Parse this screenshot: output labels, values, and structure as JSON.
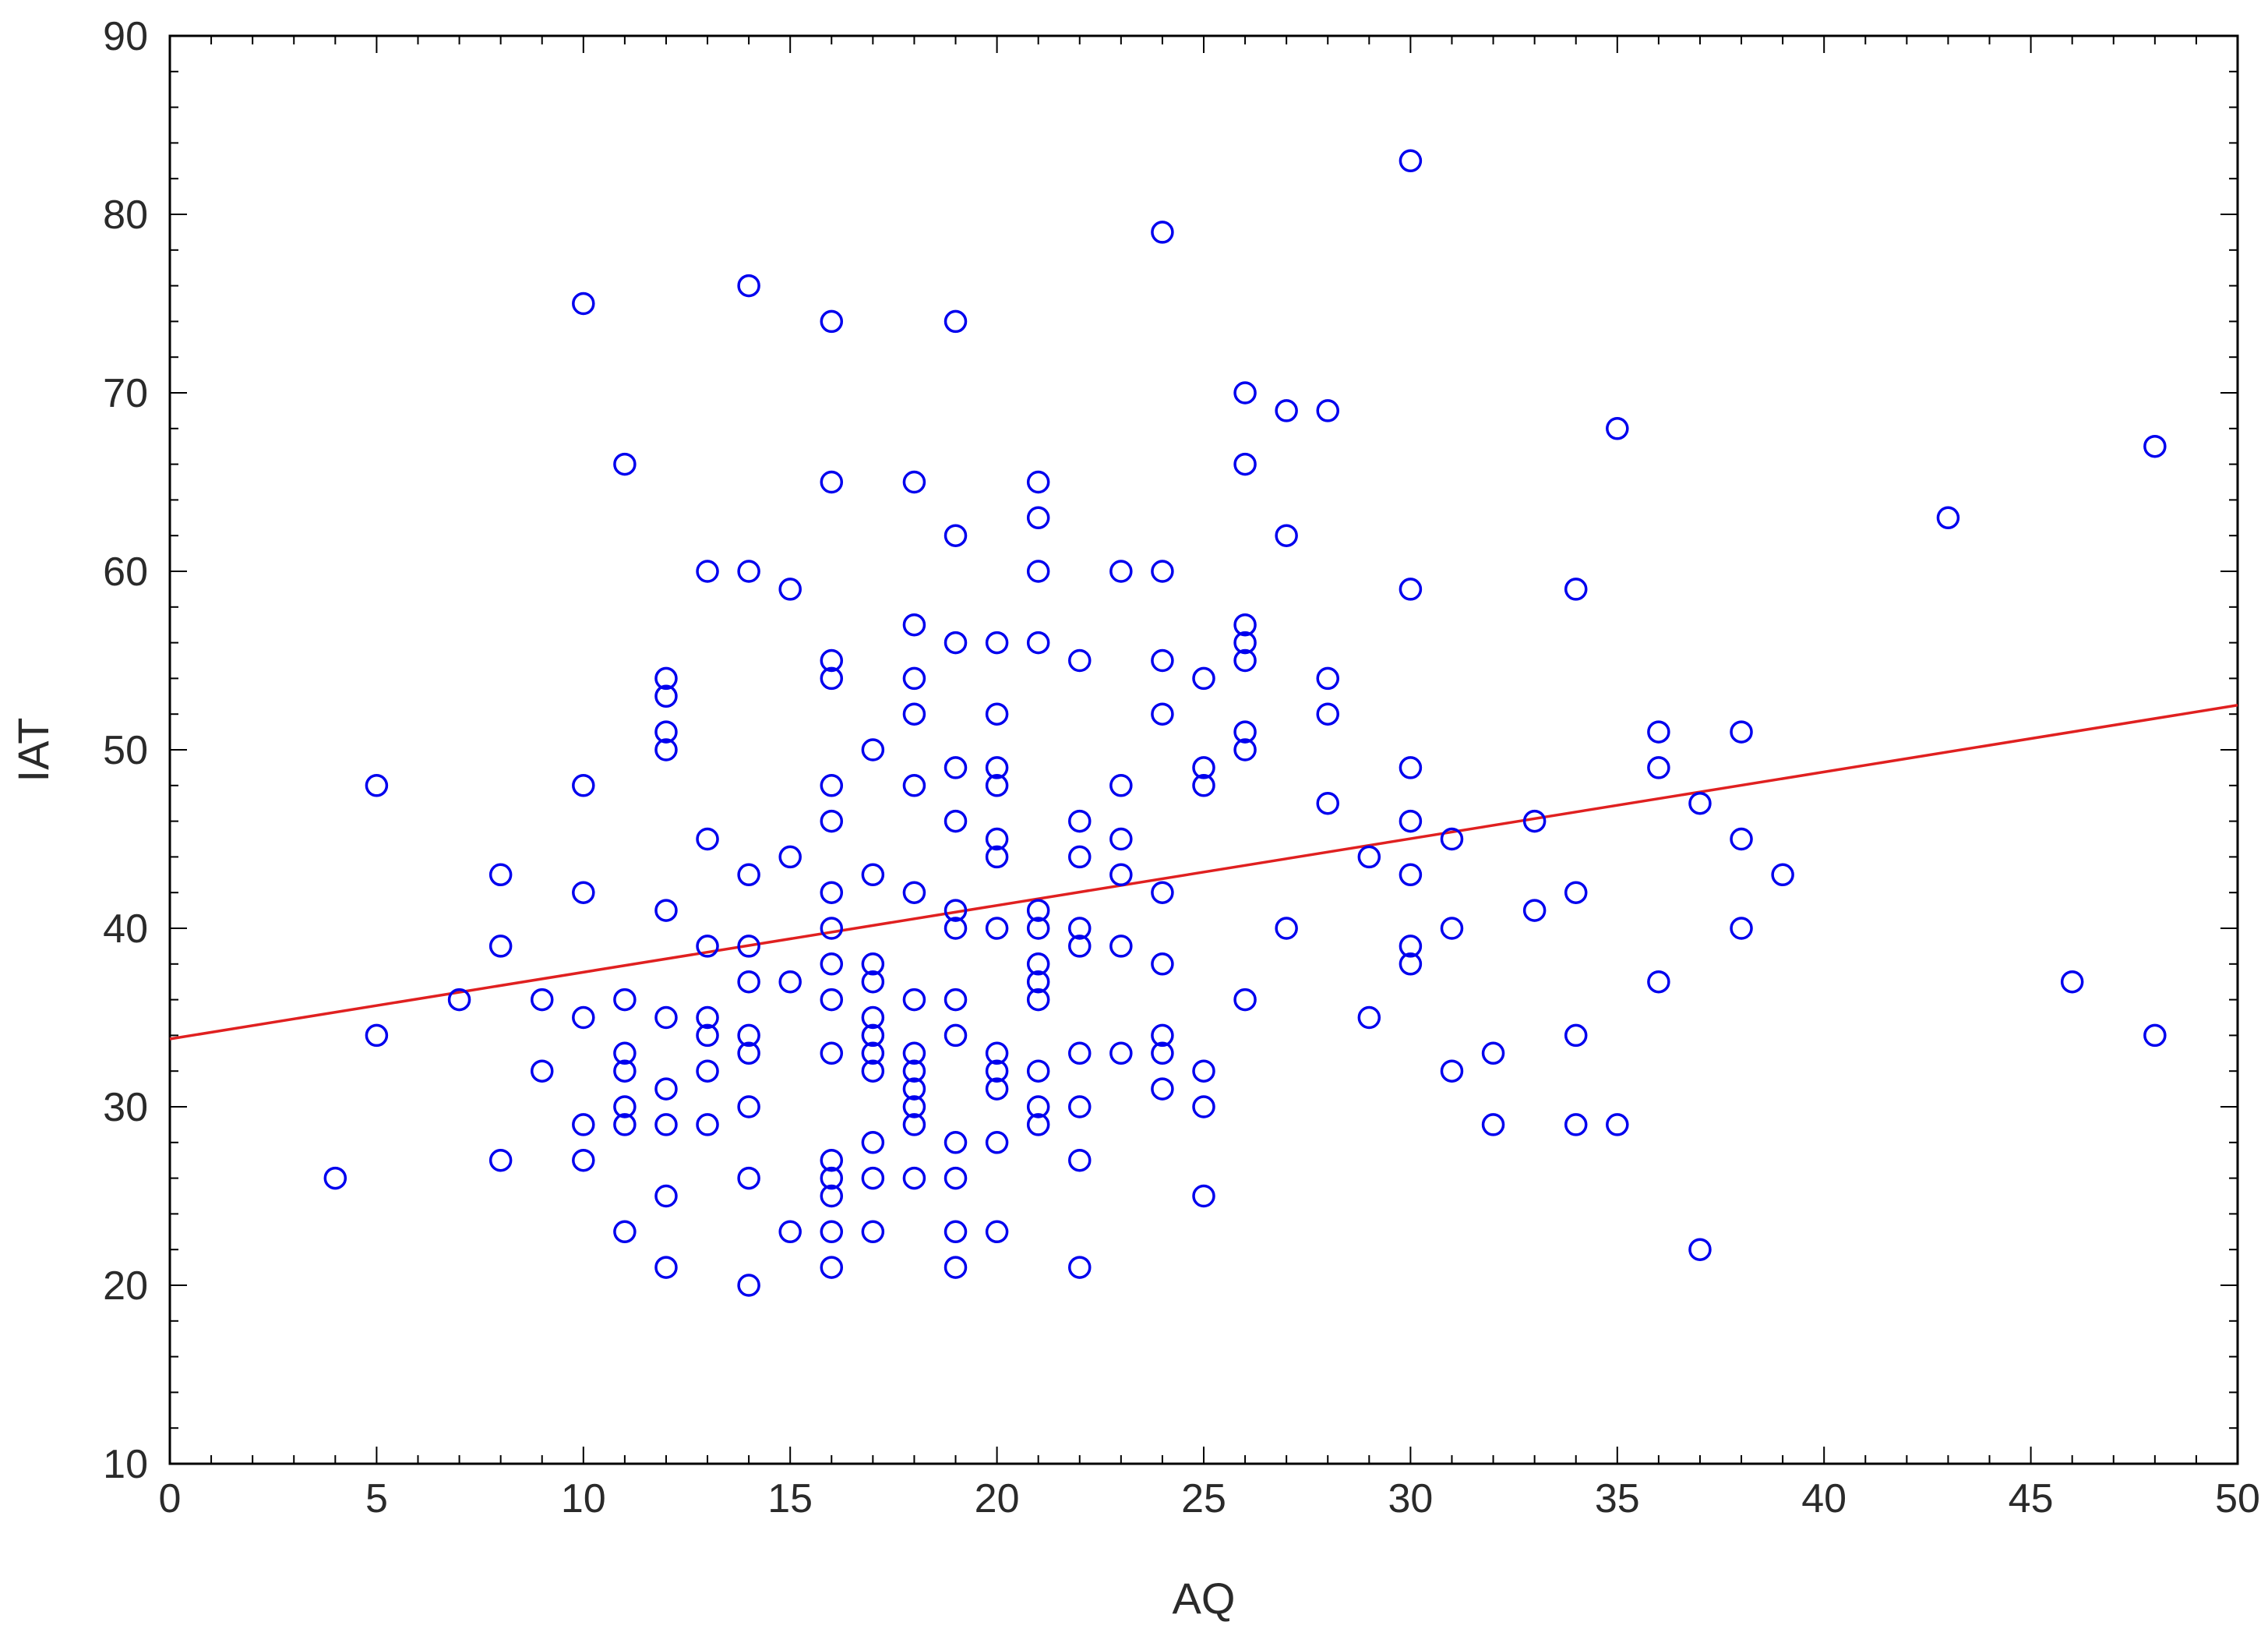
{
  "chart_data": {
    "type": "scatter",
    "xlabel": "AQ",
    "ylabel": "IAT",
    "xlim": [
      0,
      50
    ],
    "ylim": [
      10,
      90
    ],
    "x_ticks": [
      0,
      5,
      10,
      15,
      20,
      25,
      30,
      35,
      40,
      45,
      50
    ],
    "y_ticks": [
      10,
      20,
      30,
      40,
      50,
      60,
      70,
      80,
      90
    ],
    "grid": false,
    "marker": "open-circle",
    "colors": {
      "points": "#0000ee",
      "fit_line": "#e02020",
      "frame": "#000000"
    },
    "fit_line": {
      "x": [
        0,
        50
      ],
      "y": [
        33.8,
        52.5
      ]
    },
    "points": [
      [
        4,
        26
      ],
      [
        5,
        48
      ],
      [
        5,
        34
      ],
      [
        7,
        36
      ],
      [
        8,
        43
      ],
      [
        8,
        39
      ],
      [
        8,
        27
      ],
      [
        9,
        36
      ],
      [
        9,
        32
      ],
      [
        10,
        75
      ],
      [
        10,
        48
      ],
      [
        10,
        42
      ],
      [
        10,
        35
      ],
      [
        10,
        29
      ],
      [
        10,
        27
      ],
      [
        11,
        66
      ],
      [
        11,
        36
      ],
      [
        11,
        33
      ],
      [
        11,
        32
      ],
      [
        11,
        30
      ],
      [
        11,
        29
      ],
      [
        11,
        23
      ],
      [
        12,
        54
      ],
      [
        12,
        53
      ],
      [
        12,
        51
      ],
      [
        12,
        50
      ],
      [
        12,
        41
      ],
      [
        12,
        35
      ],
      [
        12,
        31
      ],
      [
        12,
        29
      ],
      [
        12,
        25
      ],
      [
        12,
        21
      ],
      [
        13,
        60
      ],
      [
        13,
        45
      ],
      [
        13,
        39
      ],
      [
        13,
        35
      ],
      [
        13,
        34
      ],
      [
        13,
        32
      ],
      [
        13,
        29
      ],
      [
        14,
        76
      ],
      [
        14,
        60
      ],
      [
        14,
        43
      ],
      [
        14,
        39
      ],
      [
        14,
        37
      ],
      [
        14,
        34
      ],
      [
        14,
        33
      ],
      [
        14,
        30
      ],
      [
        14,
        26
      ],
      [
        14,
        20
      ],
      [
        15,
        59
      ],
      [
        15,
        44
      ],
      [
        15,
        37
      ],
      [
        15,
        23
      ],
      [
        16,
        74
      ],
      [
        16,
        65
      ],
      [
        16,
        55
      ],
      [
        16,
        54
      ],
      [
        16,
        48
      ],
      [
        16,
        46
      ],
      [
        16,
        42
      ],
      [
        16,
        40
      ],
      [
        16,
        38
      ],
      [
        16,
        36
      ],
      [
        16,
        33
      ],
      [
        16,
        27
      ],
      [
        16,
        26
      ],
      [
        16,
        25
      ],
      [
        16,
        23
      ],
      [
        16,
        21
      ],
      [
        17,
        50
      ],
      [
        17,
        43
      ],
      [
        17,
        38
      ],
      [
        17,
        37
      ],
      [
        17,
        35
      ],
      [
        17,
        34
      ],
      [
        17,
        33
      ],
      [
        17,
        32
      ],
      [
        17,
        28
      ],
      [
        17,
        26
      ],
      [
        17,
        23
      ],
      [
        18,
        65
      ],
      [
        18,
        57
      ],
      [
        18,
        54
      ],
      [
        18,
        52
      ],
      [
        18,
        48
      ],
      [
        18,
        42
      ],
      [
        18,
        36
      ],
      [
        18,
        33
      ],
      [
        18,
        32
      ],
      [
        18,
        31
      ],
      [
        18,
        30
      ],
      [
        18,
        29
      ],
      [
        18,
        26
      ],
      [
        19,
        74
      ],
      [
        19,
        62
      ],
      [
        19,
        56
      ],
      [
        19,
        49
      ],
      [
        19,
        46
      ],
      [
        19,
        41
      ],
      [
        19,
        40
      ],
      [
        19,
        36
      ],
      [
        19,
        34
      ],
      [
        19,
        28
      ],
      [
        19,
        26
      ],
      [
        19,
        23
      ],
      [
        19,
        21
      ],
      [
        20,
        56
      ],
      [
        20,
        52
      ],
      [
        20,
        49
      ],
      [
        20,
        48
      ],
      [
        20,
        45
      ],
      [
        20,
        44
      ],
      [
        20,
        40
      ],
      [
        20,
        33
      ],
      [
        20,
        32
      ],
      [
        20,
        31
      ],
      [
        20,
        28
      ],
      [
        20,
        23
      ],
      [
        21,
        65
      ],
      [
        21,
        63
      ],
      [
        21,
        60
      ],
      [
        21,
        56
      ],
      [
        21,
        41
      ],
      [
        21,
        40
      ],
      [
        21,
        38
      ],
      [
        21,
        37
      ],
      [
        21,
        36
      ],
      [
        21,
        32
      ],
      [
        21,
        30
      ],
      [
        21,
        29
      ],
      [
        22,
        55
      ],
      [
        22,
        46
      ],
      [
        22,
        44
      ],
      [
        22,
        40
      ],
      [
        22,
        39
      ],
      [
        22,
        33
      ],
      [
        22,
        30
      ],
      [
        22,
        27
      ],
      [
        22,
        21
      ],
      [
        23,
        60
      ],
      [
        23,
        48
      ],
      [
        23,
        45
      ],
      [
        23,
        43
      ],
      [
        23,
        39
      ],
      [
        23,
        33
      ],
      [
        24,
        79
      ],
      [
        24,
        60
      ],
      [
        24,
        55
      ],
      [
        24,
        52
      ],
      [
        24,
        42
      ],
      [
        24,
        38
      ],
      [
        24,
        34
      ],
      [
        24,
        33
      ],
      [
        24,
        31
      ],
      [
        25,
        54
      ],
      [
        25,
        49
      ],
      [
        25,
        48
      ],
      [
        25,
        32
      ],
      [
        25,
        30
      ],
      [
        25,
        25
      ],
      [
        26,
        70
      ],
      [
        26,
        66
      ],
      [
        26,
        57
      ],
      [
        26,
        56
      ],
      [
        26,
        55
      ],
      [
        26,
        51
      ],
      [
        26,
        50
      ],
      [
        26,
        36
      ],
      [
        27,
        69
      ],
      [
        27,
        62
      ],
      [
        27,
        40
      ],
      [
        28,
        69
      ],
      [
        28,
        54
      ],
      [
        28,
        52
      ],
      [
        28,
        47
      ],
      [
        29,
        44
      ],
      [
        29,
        35
      ],
      [
        30,
        83
      ],
      [
        30,
        59
      ],
      [
        30,
        49
      ],
      [
        30,
        46
      ],
      [
        30,
        43
      ],
      [
        30,
        39
      ],
      [
        30,
        38
      ],
      [
        31,
        45
      ],
      [
        31,
        40
      ],
      [
        31,
        32
      ],
      [
        32,
        33
      ],
      [
        32,
        29
      ],
      [
        33,
        46
      ],
      [
        33,
        41
      ],
      [
        34,
        59
      ],
      [
        34,
        42
      ],
      [
        34,
        34
      ],
      [
        34,
        29
      ],
      [
        35,
        68
      ],
      [
        35,
        29
      ],
      [
        36,
        51
      ],
      [
        36,
        49
      ],
      [
        36,
        37
      ],
      [
        37,
        47
      ],
      [
        37,
        22
      ],
      [
        38,
        51
      ],
      [
        38,
        45
      ],
      [
        38,
        40
      ],
      [
        39,
        43
      ],
      [
        43,
        63
      ],
      [
        46,
        37
      ],
      [
        48,
        67
      ],
      [
        48,
        34
      ]
    ]
  }
}
